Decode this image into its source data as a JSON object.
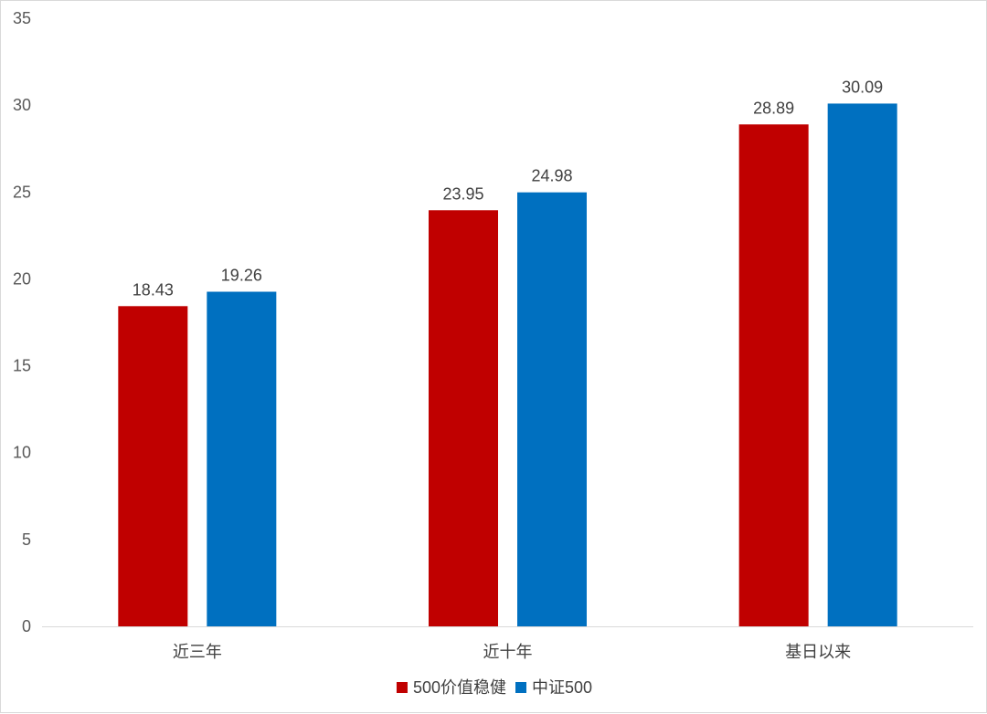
{
  "chart_data": {
    "type": "bar",
    "title": "",
    "xlabel": "",
    "ylabel": "",
    "ylim": [
      0,
      35
    ],
    "yticks": [
      0,
      5,
      10,
      15,
      20,
      25,
      30,
      35
    ],
    "grid": false,
    "legend_position": "bottom",
    "categories": [
      "近三年",
      "近十年",
      "基日以来"
    ],
    "series": [
      {
        "name": "500价值稳健",
        "color": "#C00000",
        "values": [
          18.43,
          23.95,
          28.89
        ]
      },
      {
        "name": "中证500",
        "color": "#0070C0",
        "values": [
          19.26,
          24.98,
          30.09
        ]
      }
    ]
  }
}
